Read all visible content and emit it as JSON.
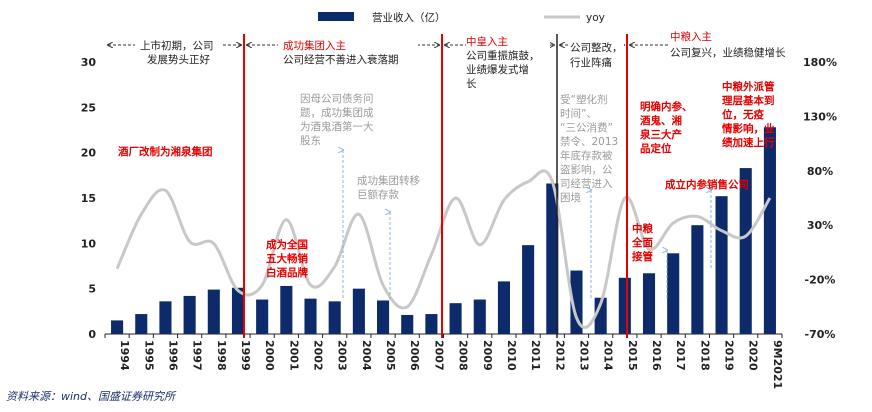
{
  "chart_data": {
    "type": "bar",
    "categories": [
      "1994",
      "1995",
      "1996",
      "1997",
      "1998",
      "1999",
      "2000",
      "2001",
      "2002",
      "2003",
      "2004",
      "2005",
      "2006",
      "2007",
      "2008",
      "2009",
      "2010",
      "2011",
      "2012",
      "2013",
      "2014",
      "2015",
      "2016",
      "2017",
      "2018",
      "2019",
      "2020",
      "9M2021"
    ],
    "series": [
      {
        "name": "营业收入（亿）",
        "type": "bar",
        "axis": "left",
        "color": "#0d2b6b",
        "values": [
          1.5,
          2.2,
          3.6,
          4.2,
          4.9,
          5.1,
          3.8,
          5.3,
          3.9,
          3.6,
          5.0,
          3.7,
          2.1,
          2.2,
          3.4,
          3.8,
          5.8,
          9.8,
          16.6,
          7.0,
          4.0,
          6.2,
          6.7,
          8.9,
          12.0,
          15.2,
          18.3,
          22.8
        ]
      },
      {
        "name": "yoy",
        "type": "line",
        "axis": "right",
        "color": "#c8c8c8",
        "values": [
          -10,
          40,
          62,
          15,
          13,
          -30,
          -25,
          35,
          -25,
          -8,
          40,
          -25,
          -45,
          3,
          55,
          12,
          53,
          70,
          70,
          -55,
          -42,
          55,
          8,
          32,
          38,
          25,
          20,
          55
        ]
      }
    ],
    "ylim_left": [
      0,
      30
    ],
    "yticks_left": [
      "0",
      "5",
      "10",
      "15",
      "20",
      "25",
      "30"
    ],
    "ylim_right": [
      -70,
      180
    ],
    "yticks_right": [
      "-70%",
      "-20%",
      "30%",
      "80%",
      "130%",
      "180%"
    ],
    "annotations_top": [
      {
        "text1": "上市初期，公司",
        "text2": "发展势头正好",
        "color": "#222222"
      },
      {
        "text1": "成功集团入主",
        "text2": "公司经营不善进入衰落期",
        "color1": "#e60000",
        "color2": "#222222"
      },
      {
        "text1": "中皇入主",
        "text2": "公司重振旗鼓，",
        "text3": "业绩爆发式增",
        "text4": "长",
        "color1": "#e60000",
        "color2": "#222222"
      },
      {
        "text1": "公司整改，",
        "text2": "行业阵痛",
        "color": "#222222"
      },
      {
        "text1": "中粮入主",
        "text2": "公司复兴，业绩稳健增长",
        "color1": "#e60000",
        "color2": "#222222"
      }
    ],
    "annotations_red": [
      {
        "lines": [
          "酒厂改制为湘泉集团"
        ]
      },
      {
        "lines": [
          "成为全国",
          "五大畅销",
          "白酒品牌"
        ]
      },
      {
        "lines": [
          "明确内参、",
          "酒鬼、湘",
          "泉三大产",
          "品定位"
        ]
      },
      {
        "lines": [
          "中粮",
          "全面",
          "接管"
        ]
      },
      {
        "lines": [
          "成立内参销售公司"
        ]
      },
      {
        "lines": [
          "中粮外派管",
          "理层基本到",
          "位，无疫",
          "情影响，业",
          "绩加速上行"
        ]
      }
    ],
    "annotations_gray": [
      {
        "lines": [
          "因母公司债务问",
          "题，成功集团成",
          "为酒鬼酒第一大",
          "股东"
        ]
      },
      {
        "lines": [
          "成功集团转移",
          "巨额存款"
        ]
      },
      {
        "lines": [
          "受“塑化剂",
          "时间”、",
          "“三公消费”",
          "禁令、2013",
          "年底存款被",
          "盗影响，公",
          "司经营进入",
          "困境"
        ]
      }
    ],
    "source": "资料来源：wind、国盛证券研究所"
  }
}
